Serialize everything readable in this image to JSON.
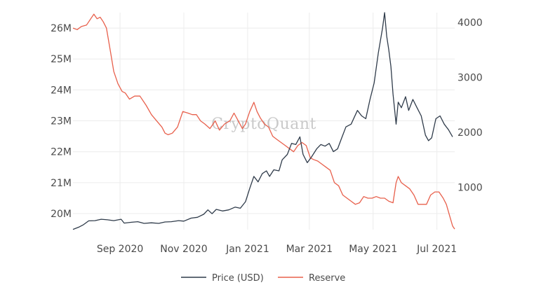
{
  "chart_data": {
    "type": "line",
    "watermark": "CryptoQuant",
    "x_range": [
      "2020-07-18",
      "2021-07-18"
    ],
    "x_ticks": [
      {
        "date": "2020-09-01",
        "label": "Sep 2020"
      },
      {
        "date": "2020-11-01",
        "label": "Nov 2020"
      },
      {
        "date": "2021-01-01",
        "label": "Jan 2021"
      },
      {
        "date": "2021-03-01",
        "label": "Mar 2021"
      },
      {
        "date": "2021-05-01",
        "label": "May 2021"
      },
      {
        "date": "2021-07-01",
        "label": "Jul 2021"
      }
    ],
    "y_left": {
      "min": 19.48,
      "max": 26.5,
      "ticks": [
        {
          "value": 20,
          "label": "20M"
        },
        {
          "value": 21,
          "label": "21M"
        },
        {
          "value": 22,
          "label": "22M"
        },
        {
          "value": 23,
          "label": "23M"
        },
        {
          "value": 24,
          "label": "24M"
        },
        {
          "value": 25,
          "label": "25M"
        },
        {
          "value": 26,
          "label": "26M"
        }
      ]
    },
    "y_right": {
      "min": 230,
      "max": 4180,
      "ticks": [
        {
          "value": 1000,
          "label": "1000"
        },
        {
          "value": 2000,
          "label": "2000"
        },
        {
          "value": 3000,
          "label": "3000"
        },
        {
          "value": 4000,
          "label": "4000"
        }
      ]
    },
    "grid": true,
    "legend_position": "bottom",
    "series": [
      {
        "name": "Price (USD)",
        "axis": "right",
        "color": "#2f3b4a",
        "points": [
          [
            "2020-07-18",
            235
          ],
          [
            "2020-07-24",
            280
          ],
          [
            "2020-07-28",
            320
          ],
          [
            "2020-08-02",
            390
          ],
          [
            "2020-08-08",
            395
          ],
          [
            "2020-08-14",
            420
          ],
          [
            "2020-08-20",
            410
          ],
          [
            "2020-08-26",
            395
          ],
          [
            "2020-09-02",
            420
          ],
          [
            "2020-09-05",
            350
          ],
          [
            "2020-09-12",
            365
          ],
          [
            "2020-09-18",
            375
          ],
          [
            "2020-09-24",
            345
          ],
          [
            "2020-10-01",
            355
          ],
          [
            "2020-10-08",
            345
          ],
          [
            "2020-10-14",
            370
          ],
          [
            "2020-10-20",
            375
          ],
          [
            "2020-10-27",
            395
          ],
          [
            "2020-11-01",
            385
          ],
          [
            "2020-11-08",
            440
          ],
          [
            "2020-11-14",
            455
          ],
          [
            "2020-11-20",
            510
          ],
          [
            "2020-11-24",
            590
          ],
          [
            "2020-11-28",
            520
          ],
          [
            "2020-12-02",
            600
          ],
          [
            "2020-12-08",
            570
          ],
          [
            "2020-12-14",
            590
          ],
          [
            "2020-12-20",
            640
          ],
          [
            "2020-12-25",
            620
          ],
          [
            "2020-12-30",
            740
          ],
          [
            "2021-01-03",
            980
          ],
          [
            "2021-01-07",
            1200
          ],
          [
            "2021-01-11",
            1100
          ],
          [
            "2021-01-15",
            1250
          ],
          [
            "2021-01-19",
            1300
          ],
          [
            "2021-01-22",
            1200
          ],
          [
            "2021-01-26",
            1320
          ],
          [
            "2021-01-31",
            1300
          ],
          [
            "2021-02-03",
            1500
          ],
          [
            "2021-02-08",
            1600
          ],
          [
            "2021-02-12",
            1800
          ],
          [
            "2021-02-16",
            1780
          ],
          [
            "2021-02-20",
            1920
          ],
          [
            "2021-02-23",
            1600
          ],
          [
            "2021-02-27",
            1450
          ],
          [
            "2021-03-03",
            1550
          ],
          [
            "2021-03-08",
            1700
          ],
          [
            "2021-03-12",
            1780
          ],
          [
            "2021-03-16",
            1750
          ],
          [
            "2021-03-20",
            1800
          ],
          [
            "2021-03-24",
            1650
          ],
          [
            "2021-03-28",
            1700
          ],
          [
            "2021-04-01",
            1900
          ],
          [
            "2021-04-05",
            2100
          ],
          [
            "2021-04-10",
            2150
          ],
          [
            "2021-04-16",
            2400
          ],
          [
            "2021-04-20",
            2300
          ],
          [
            "2021-04-24",
            2250
          ],
          [
            "2021-04-28",
            2600
          ],
          [
            "2021-05-02",
            2900
          ],
          [
            "2021-05-06",
            3450
          ],
          [
            "2021-05-10",
            3900
          ],
          [
            "2021-05-12",
            4180
          ],
          [
            "2021-05-14",
            3750
          ],
          [
            "2021-05-16",
            3500
          ],
          [
            "2021-05-18",
            3200
          ],
          [
            "2021-05-20",
            2700
          ],
          [
            "2021-05-23",
            2150
          ],
          [
            "2021-05-25",
            2550
          ],
          [
            "2021-05-28",
            2450
          ],
          [
            "2021-06-01",
            2650
          ],
          [
            "2021-06-04",
            2400
          ],
          [
            "2021-06-08",
            2600
          ],
          [
            "2021-06-12",
            2450
          ],
          [
            "2021-06-16",
            2300
          ],
          [
            "2021-06-20",
            1950
          ],
          [
            "2021-06-23",
            1850
          ],
          [
            "2021-06-26",
            1900
          ],
          [
            "2021-06-30",
            2250
          ],
          [
            "2021-07-04",
            2300
          ],
          [
            "2021-07-08",
            2150
          ],
          [
            "2021-07-12",
            2050
          ],
          [
            "2021-07-16",
            1920
          ]
        ]
      },
      {
        "name": "Reserve",
        "axis": "left",
        "color": "#e8604c",
        "points": [
          [
            "2020-07-18",
            26.0
          ],
          [
            "2020-07-22",
            25.95
          ],
          [
            "2020-07-26",
            26.05
          ],
          [
            "2020-07-31",
            26.1
          ],
          [
            "2020-08-04",
            26.3
          ],
          [
            "2020-08-07",
            26.45
          ],
          [
            "2020-08-10",
            26.3
          ],
          [
            "2020-08-13",
            26.35
          ],
          [
            "2020-08-16",
            26.2
          ],
          [
            "2020-08-19",
            26.0
          ],
          [
            "2020-08-23",
            25.2
          ],
          [
            "2020-08-26",
            24.6
          ],
          [
            "2020-08-30",
            24.2
          ],
          [
            "2020-09-03",
            23.95
          ],
          [
            "2020-09-06",
            23.9
          ],
          [
            "2020-09-10",
            23.7
          ],
          [
            "2020-09-15",
            23.8
          ],
          [
            "2020-09-20",
            23.8
          ],
          [
            "2020-09-26",
            23.5
          ],
          [
            "2020-10-01",
            23.2
          ],
          [
            "2020-10-06",
            23.0
          ],
          [
            "2020-10-11",
            22.8
          ],
          [
            "2020-10-14",
            22.6
          ],
          [
            "2020-10-17",
            22.55
          ],
          [
            "2020-10-21",
            22.6
          ],
          [
            "2020-10-26",
            22.8
          ],
          [
            "2020-10-31",
            23.3
          ],
          [
            "2020-11-05",
            23.25
          ],
          [
            "2020-11-09",
            23.2
          ],
          [
            "2020-11-13",
            23.2
          ],
          [
            "2020-11-17",
            23.0
          ],
          [
            "2020-11-21",
            22.9
          ],
          [
            "2020-11-26",
            22.75
          ],
          [
            "2020-12-01",
            23.0
          ],
          [
            "2020-12-05",
            22.7
          ],
          [
            "2020-12-10",
            22.9
          ],
          [
            "2020-12-15",
            23.0
          ],
          [
            "2020-12-19",
            23.25
          ],
          [
            "2020-12-23",
            23.0
          ],
          [
            "2020-12-27",
            22.75
          ],
          [
            "2020-12-30",
            22.9
          ],
          [
            "2021-01-03",
            23.3
          ],
          [
            "2021-01-07",
            23.6
          ],
          [
            "2021-01-10",
            23.3
          ],
          [
            "2021-01-13",
            23.1
          ],
          [
            "2021-01-17",
            22.9
          ],
          [
            "2021-01-21",
            22.8
          ],
          [
            "2021-01-25",
            22.5
          ],
          [
            "2021-01-29",
            22.4
          ],
          [
            "2021-02-02",
            22.3
          ],
          [
            "2021-02-06",
            22.2
          ],
          [
            "2021-02-10",
            22.1
          ],
          [
            "2021-02-14",
            22.0
          ],
          [
            "2021-02-18",
            22.2
          ],
          [
            "2021-02-22",
            22.3
          ],
          [
            "2021-02-26",
            22.2
          ],
          [
            "2021-03-02",
            21.8
          ],
          [
            "2021-03-05",
            21.75
          ],
          [
            "2021-03-09",
            21.7
          ],
          [
            "2021-03-13",
            21.6
          ],
          [
            "2021-03-17",
            21.5
          ],
          [
            "2021-03-21",
            21.4
          ],
          [
            "2021-03-25",
            21.0
          ],
          [
            "2021-03-29",
            20.9
          ],
          [
            "2021-04-02",
            20.6
          ],
          [
            "2021-04-06",
            20.5
          ],
          [
            "2021-04-10",
            20.4
          ],
          [
            "2021-04-14",
            20.3
          ],
          [
            "2021-04-18",
            20.35
          ],
          [
            "2021-04-22",
            20.55
          ],
          [
            "2021-04-26",
            20.5
          ],
          [
            "2021-04-30",
            20.5
          ],
          [
            "2021-05-04",
            20.55
          ],
          [
            "2021-05-08",
            20.5
          ],
          [
            "2021-05-12",
            20.5
          ],
          [
            "2021-05-16",
            20.4
          ],
          [
            "2021-05-20",
            20.35
          ],
          [
            "2021-05-23",
            21.0
          ],
          [
            "2021-05-25",
            21.2
          ],
          [
            "2021-05-28",
            21.0
          ],
          [
            "2021-06-01",
            20.9
          ],
          [
            "2021-06-05",
            20.8
          ],
          [
            "2021-06-09",
            20.6
          ],
          [
            "2021-06-13",
            20.3
          ],
          [
            "2021-06-17",
            20.3
          ],
          [
            "2021-06-21",
            20.3
          ],
          [
            "2021-06-25",
            20.6
          ],
          [
            "2021-06-29",
            20.7
          ],
          [
            "2021-07-03",
            20.7
          ],
          [
            "2021-07-07",
            20.5
          ],
          [
            "2021-07-10",
            20.3
          ],
          [
            "2021-07-13",
            19.95
          ],
          [
            "2021-07-16",
            19.6
          ],
          [
            "2021-07-18",
            19.5
          ]
        ]
      }
    ]
  }
}
